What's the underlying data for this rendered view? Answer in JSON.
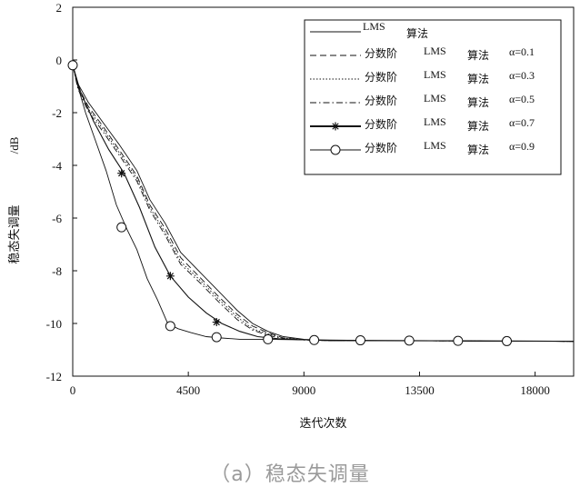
{
  "caption": "（a）稳态失调量",
  "chart_data": {
    "type": "line",
    "xlabel": "迭代次数",
    "ylabel": "稳态失调量",
    "ylabel_unit": "/dB",
    "xlim": [
      0,
      19500
    ],
    "ylim": [
      -12,
      2
    ],
    "xticks": [
      0,
      4500,
      9000,
      13500,
      18000
    ],
    "yticks": [
      2,
      0,
      -2,
      -4,
      -6,
      -8,
      -10,
      -12
    ],
    "grid": false,
    "legend_position": "top-right",
    "series": [
      {
        "name": "LMS 算法",
        "label_parts": [
          "LMS",
          "算法",
          ""
        ],
        "style": "solid",
        "marker": "none",
        "x": [
          0,
          200,
          600,
          1200,
          1800,
          2500,
          3000,
          3600,
          4200,
          5000,
          5700,
          6400,
          7000,
          7600,
          8200,
          9000,
          10000,
          12000,
          14000,
          16000,
          18000,
          19500
        ],
        "y": [
          -0.2,
          -0.9,
          -1.6,
          -2.4,
          -3.2,
          -4.2,
          -5.3,
          -6.2,
          -7.3,
          -8.1,
          -8.8,
          -9.5,
          -10.0,
          -10.3,
          -10.5,
          -10.6,
          -10.65,
          -10.65,
          -10.65,
          -10.67,
          -10.67,
          -10.68
        ]
      },
      {
        "name": "分数阶 LMS 算法 α=0.1",
        "label_parts": [
          "分数阶",
          "LMS",
          "算法",
          "α=0.1"
        ],
        "style": "dashed",
        "marker": "none",
        "x": [
          0,
          200,
          600,
          1200,
          1800,
          2500,
          3000,
          3600,
          4200,
          5000,
          5700,
          6400,
          7000,
          7600,
          8200,
          9000,
          10000,
          12000,
          14000,
          16000,
          18000,
          19500
        ],
        "y": [
          -0.2,
          -1.0,
          -1.75,
          -2.55,
          -3.4,
          -4.4,
          -5.5,
          -6.4,
          -7.5,
          -8.3,
          -9.0,
          -9.65,
          -10.1,
          -10.35,
          -10.55,
          -10.62,
          -10.65,
          -10.65,
          -10.66,
          -10.67,
          -10.67,
          -10.68
        ]
      },
      {
        "name": "分数阶 LMS 算法 α=0.3",
        "label_parts": [
          "分数阶",
          "LMS",
          "算法",
          "α=0.3"
        ],
        "style": "dotted",
        "marker": "none",
        "x": [
          0,
          200,
          600,
          1200,
          1800,
          2500,
          3000,
          3600,
          4200,
          5000,
          5700,
          6400,
          7000,
          7600,
          8200,
          9000,
          10000,
          12000,
          14000,
          16000,
          18000,
          19500
        ],
        "y": [
          -0.2,
          -1.05,
          -1.85,
          -2.65,
          -3.5,
          -4.5,
          -5.6,
          -6.55,
          -7.65,
          -8.4,
          -9.1,
          -9.75,
          -10.2,
          -10.4,
          -10.55,
          -10.62,
          -10.65,
          -10.65,
          -10.66,
          -10.67,
          -10.67,
          -10.68
        ]
      },
      {
        "name": "分数阶 LMS 算法 α=0.5",
        "label_parts": [
          "分数阶",
          "LMS",
          "算法",
          "α=0.5"
        ],
        "style": "dashdot",
        "marker": "none",
        "x": [
          0,
          200,
          600,
          1200,
          1800,
          2500,
          3000,
          3600,
          4200,
          5000,
          5700,
          6400,
          7000,
          7600,
          8200,
          9000,
          10000,
          12000,
          14000,
          16000,
          18000,
          19500
        ],
        "y": [
          -0.2,
          -1.1,
          -1.95,
          -2.75,
          -3.6,
          -4.6,
          -5.7,
          -6.65,
          -7.75,
          -8.5,
          -9.2,
          -9.85,
          -10.25,
          -10.45,
          -10.58,
          -10.63,
          -10.65,
          -10.65,
          -10.66,
          -10.67,
          -10.67,
          -10.68
        ]
      },
      {
        "name": "分数阶 LMS 算法 α=0.7",
        "label_parts": [
          "分数阶",
          "LMS",
          "算法",
          "α=0.7"
        ],
        "style": "solid",
        "marker": "star",
        "x": [
          0,
          300,
          800,
          1400,
          2000,
          2600,
          3200,
          3800,
          4500,
          5200,
          5800,
          6500,
          7200,
          8000,
          9000,
          10000,
          12000,
          14000,
          16000,
          18000,
          19500
        ],
        "y": [
          -0.2,
          -1.2,
          -2.3,
          -3.4,
          -4.3,
          -5.6,
          -7.1,
          -8.2,
          -9.0,
          -9.6,
          -10.0,
          -10.3,
          -10.5,
          -10.58,
          -10.62,
          -10.64,
          -10.65,
          -10.66,
          -10.67,
          -10.67,
          -10.68
        ],
        "markers_x": [
          0,
          1900,
          3800,
          5600,
          7600,
          9400,
          11200,
          13100,
          15000,
          16900
        ],
        "markers_y": [
          -0.2,
          -4.3,
          -8.2,
          -9.95,
          -10.55,
          -10.63,
          -10.65,
          -10.66,
          -10.67,
          -10.67
        ]
      },
      {
        "name": "分数阶 LMS 算法 α=0.9",
        "label_parts": [
          "分数阶",
          "LMS",
          "算法",
          "α=0.9"
        ],
        "style": "solid",
        "marker": "circle",
        "x": [
          0,
          200,
          500,
          900,
          1300,
          1700,
          2100,
          2500,
          2900,
          3300,
          3700,
          4100,
          4600,
          5200,
          5800,
          6500,
          7500,
          9000,
          11000,
          14000,
          16000,
          18000,
          19500
        ],
        "y": [
          -0.2,
          -1.0,
          -2.0,
          -3.1,
          -4.2,
          -5.5,
          -6.4,
          -7.2,
          -8.3,
          -9.1,
          -10.0,
          -10.2,
          -10.35,
          -10.5,
          -10.55,
          -10.6,
          -10.6,
          -10.62,
          -10.64,
          -10.65,
          -10.66,
          -10.67,
          -10.68
        ],
        "markers_x": [
          0,
          1900,
          3800,
          5600,
          7600,
          9400,
          11200,
          13100,
          15000,
          16900
        ],
        "markers_y": [
          -0.2,
          -6.35,
          -10.1,
          -10.52,
          -10.6,
          -10.63,
          -10.64,
          -10.65,
          -10.66,
          -10.67
        ]
      }
    ]
  }
}
